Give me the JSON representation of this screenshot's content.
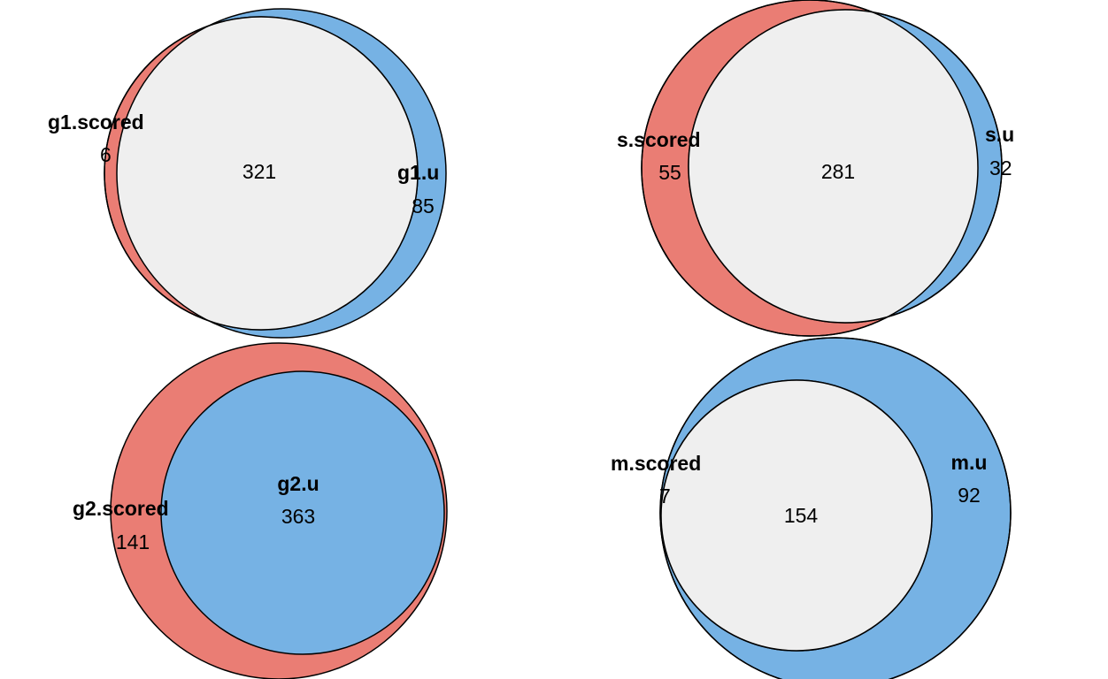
{
  "colors": {
    "set_a": "#ea7d74",
    "set_b": "#76b2e4",
    "overlap": "#efefef",
    "outline": "#000000"
  },
  "diagrams": [
    {
      "set_a_name": "g1.scored",
      "set_b_name": "g1.u",
      "only_a": "6",
      "both": "321",
      "only_b": "85"
    },
    {
      "set_a_name": "s.scored",
      "set_b_name": "s.u",
      "only_a": "55",
      "both": "281",
      "only_b": "32"
    },
    {
      "set_a_name": "g2.scored",
      "set_b_name": "g2.u",
      "only_a": "141",
      "both": "",
      "only_b": "363"
    },
    {
      "set_a_name": "m.scored",
      "set_b_name": "m.u",
      "only_a": "7",
      "both": "154",
      "only_b": "92"
    }
  ]
}
